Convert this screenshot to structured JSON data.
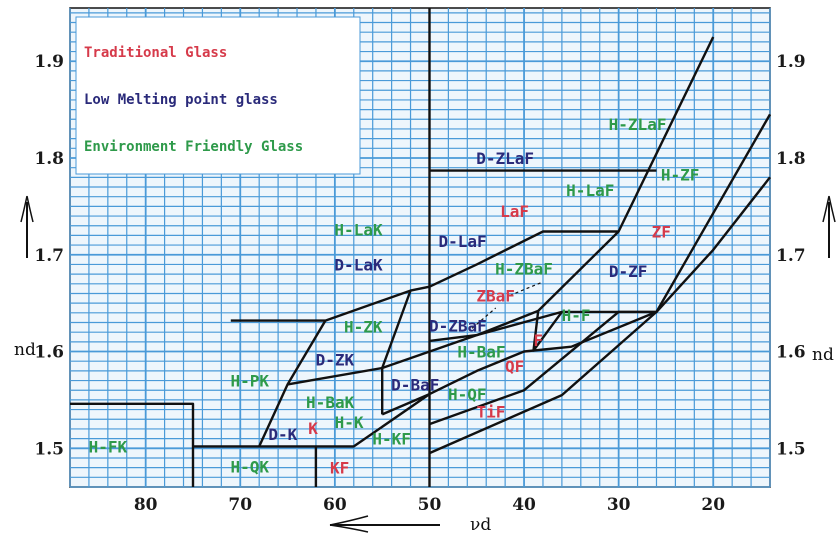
{
  "colors": {
    "grid": "#4a9ad8",
    "background": "#eef6fc",
    "boundary": "#111111",
    "traditional": "#d63a4a",
    "low_melting": "#2a2a7a",
    "environment": "#2e9a4a"
  },
  "axes": {
    "x_label": "νd",
    "y_label": "nd",
    "x_range": [
      88,
      14
    ],
    "y_range": [
      1.46,
      1.955
    ],
    "x_ticks": [
      "80",
      "70",
      "60",
      "50",
      "40",
      "30",
      "20"
    ],
    "y_ticks": [
      "1.9",
      "1.8",
      "1.7",
      "1.6",
      "1.5"
    ]
  },
  "legend": [
    {
      "label": "Traditional Glass",
      "category": "traditional"
    },
    {
      "label": "Low Melting point glass",
      "category": "low_melting"
    },
    {
      "label": "Environment Friendly Glass",
      "category": "environment"
    }
  ],
  "regions": [
    {
      "label": "H-ZLaF",
      "category": "environment",
      "vd": 28,
      "nd": 1.835
    },
    {
      "label": "D-ZLaF",
      "category": "low_melting",
      "vd": 42,
      "nd": 1.8
    },
    {
      "label": "H-ZF",
      "category": "environment",
      "vd": 23.5,
      "nd": 1.783
    },
    {
      "label": "H-LaF",
      "category": "environment",
      "vd": 33,
      "nd": 1.767
    },
    {
      "label": "LaF",
      "category": "traditional",
      "vd": 41,
      "nd": 1.745
    },
    {
      "label": "ZF",
      "category": "traditional",
      "vd": 25.5,
      "nd": 1.724
    },
    {
      "label": "H-LaK",
      "category": "environment",
      "vd": 57.5,
      "nd": 1.726
    },
    {
      "label": "D-LaF",
      "category": "low_melting",
      "vd": 46.5,
      "nd": 1.714
    },
    {
      "label": "D-LaK",
      "category": "low_melting",
      "vd": 57.5,
      "nd": 1.69
    },
    {
      "label": "H-ZBaF",
      "category": "environment",
      "vd": 40,
      "nd": 1.686
    },
    {
      "label": "D-ZF",
      "category": "low_melting",
      "vd": 29,
      "nd": 1.683
    },
    {
      "label": "ZBaF",
      "category": "traditional",
      "vd": 43,
      "nd": 1.658
    },
    {
      "label": "H-ZK",
      "category": "environment",
      "vd": 57,
      "nd": 1.626
    },
    {
      "label": "D-ZBaF",
      "category": "low_melting",
      "vd": 47,
      "nd": 1.627
    },
    {
      "label": "H-F",
      "category": "environment",
      "vd": 34.5,
      "nd": 1.638
    },
    {
      "label": "F",
      "category": "traditional",
      "vd": 38.5,
      "nd": 1.612
    },
    {
      "label": "H-BaF",
      "category": "environment",
      "vd": 44.5,
      "nd": 1.6
    },
    {
      "label": "D-ZK",
      "category": "low_melting",
      "vd": 60,
      "nd": 1.592
    },
    {
      "label": "QF",
      "category": "traditional",
      "vd": 41,
      "nd": 1.585
    },
    {
      "label": "H-PK",
      "category": "environment",
      "vd": 69,
      "nd": 1.57
    },
    {
      "label": "D-BaF",
      "category": "low_melting",
      "vd": 51.5,
      "nd": 1.566
    },
    {
      "label": "H-BaK",
      "category": "environment",
      "vd": 60.5,
      "nd": 1.548
    },
    {
      "label": "H-QF",
      "category": "environment",
      "vd": 46,
      "nd": 1.556
    },
    {
      "label": "TiF",
      "category": "traditional",
      "vd": 43.5,
      "nd": 1.538
    },
    {
      "label": "H-K",
      "category": "environment",
      "vd": 58.5,
      "nd": 1.527
    },
    {
      "label": "K",
      "category": "traditional",
      "vd": 62.3,
      "nd": 1.521
    },
    {
      "label": "D-K",
      "category": "low_melting",
      "vd": 65.5,
      "nd": 1.515
    },
    {
      "label": "H-KF",
      "category": "environment",
      "vd": 54,
      "nd": 1.51
    },
    {
      "label": "H-FK",
      "category": "environment",
      "vd": 84,
      "nd": 1.502
    },
    {
      "label": "H-QK",
      "category": "environment",
      "vd": 69,
      "nd": 1.481
    },
    {
      "label": "KF",
      "category": "traditional",
      "vd": 59.5,
      "nd": 1.48
    }
  ],
  "boundaries": [
    [
      [
        88,
        1.546
      ],
      [
        75,
        1.546
      ],
      [
        75,
        1.46
      ]
    ],
    [
      [
        75,
        1.502
      ],
      [
        62,
        1.502
      ],
      [
        62,
        1.46
      ]
    ],
    [
      [
        50,
        1.955
      ],
      [
        50,
        1.46
      ]
    ],
    [
      [
        50,
        1.787
      ],
      [
        26,
        1.787
      ]
    ],
    [
      [
        71,
        1.632
      ],
      [
        61,
        1.632
      ],
      [
        52,
        1.663
      ],
      [
        50,
        1.667
      ],
      [
        45,
        1.69
      ],
      [
        38,
        1.724
      ],
      [
        30,
        1.724
      ],
      [
        20,
        1.925
      ]
    ],
    [
      [
        68,
        1.502
      ],
      [
        65,
        1.566
      ],
      [
        61,
        1.632
      ]
    ],
    [
      [
        65,
        1.566
      ],
      [
        55,
        1.583
      ],
      [
        45,
        1.617
      ],
      [
        36,
        1.641
      ],
      [
        30,
        1.641
      ],
      [
        26,
        1.641
      ],
      [
        14,
        1.845
      ]
    ],
    [
      [
        55,
        1.583
      ],
      [
        55,
        1.535
      ]
    ],
    [
      [
        62,
        1.502
      ],
      [
        58,
        1.502
      ],
      [
        50,
        1.556
      ],
      [
        45,
        1.58
      ],
      [
        40,
        1.6
      ],
      [
        35,
        1.605
      ],
      [
        26,
        1.641
      ]
    ],
    [
      [
        55,
        1.535
      ],
      [
        50,
        1.556
      ]
    ],
    [
      [
        55,
        1.583
      ],
      [
        52,
        1.663
      ]
    ],
    [
      [
        50,
        1.525
      ],
      [
        40,
        1.56
      ],
      [
        30,
        1.641
      ],
      [
        26,
        1.641
      ],
      [
        20,
        1.705
      ],
      [
        14,
        1.78
      ]
    ],
    [
      [
        50,
        1.495
      ],
      [
        36,
        1.555
      ],
      [
        26,
        1.641
      ]
    ],
    [
      [
        50,
        1.611
      ],
      [
        45,
        1.617
      ],
      [
        38.5,
        1.642
      ],
      [
        30,
        1.724
      ]
    ],
    [
      [
        38.5,
        1.642
      ],
      [
        39,
        1.601
      ],
      [
        36,
        1.641
      ]
    ]
  ],
  "dashed": [
    [
      [
        45.5,
        1.624
      ],
      [
        43,
        1.645
      ]
    ],
    [
      [
        41.5,
        1.658
      ],
      [
        38,
        1.672
      ]
    ]
  ]
}
